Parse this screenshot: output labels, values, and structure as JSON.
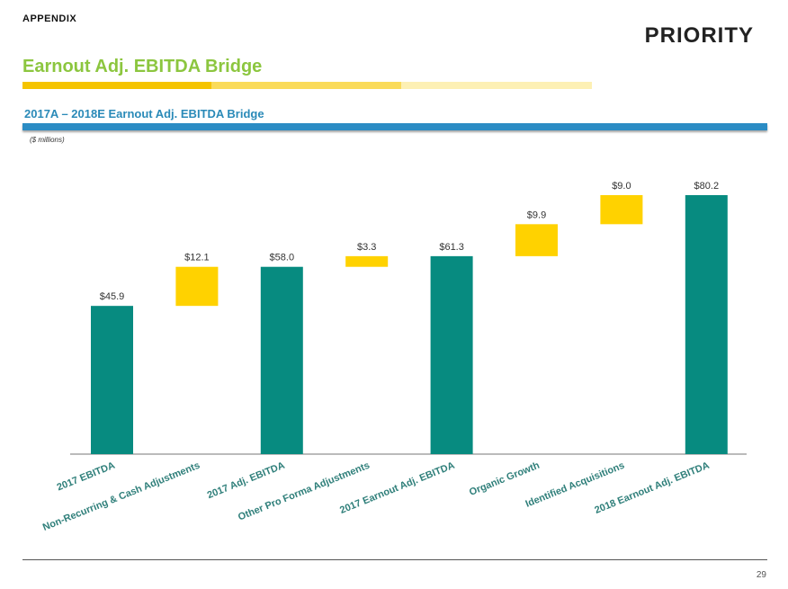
{
  "header": {
    "appendix_label": "APPENDIX",
    "logo_text": "PRIORITY",
    "title": "Earnout Adj. EBITDA Bridge",
    "subtitle": "2017A – 2018E Earnout Adj. EBITDA Bridge",
    "units": "($ millions)"
  },
  "colors": {
    "total_bar": "#078b80",
    "increment_bar": "#ffd200",
    "title_green": "#8cc63f",
    "accent_blue": "#2b8cc4"
  },
  "footer": {
    "page_number": "29"
  },
  "chart_data": {
    "type": "bar",
    "subtype": "waterfall",
    "title": "2017A – 2018E Earnout Adj. EBITDA Bridge",
    "ylabel": "($ millions)",
    "xlabel": "",
    "grid": false,
    "ylim": [
      0,
      85
    ],
    "categories": [
      "2017 EBITDA",
      "Non-Recurring & Cash Adjustments",
      "2017 Adj. EBITDA",
      "Other Pro Forma Adjustments",
      "2017 Earnout Adj. EBITDA",
      "Organic Growth",
      "Identified Acquisitions",
      "2018 Earnout Adj. EBITDA"
    ],
    "bars": [
      {
        "kind": "total",
        "base": 0,
        "value": 45.9,
        "label": "$45.9"
      },
      {
        "kind": "increment",
        "base": 45.9,
        "value": 12.1,
        "label": "$12.1"
      },
      {
        "kind": "total",
        "base": 0,
        "value": 58.0,
        "label": "$58.0"
      },
      {
        "kind": "increment",
        "base": 58.0,
        "value": 3.3,
        "label": "$3.3"
      },
      {
        "kind": "total",
        "base": 0,
        "value": 61.3,
        "label": "$61.3"
      },
      {
        "kind": "increment",
        "base": 61.3,
        "value": 9.9,
        "label": "$9.9"
      },
      {
        "kind": "increment",
        "base": 71.2,
        "value": 9.0,
        "label": "$9.0"
      },
      {
        "kind": "total",
        "base": 0,
        "value": 80.2,
        "label": "$80.2"
      }
    ]
  }
}
